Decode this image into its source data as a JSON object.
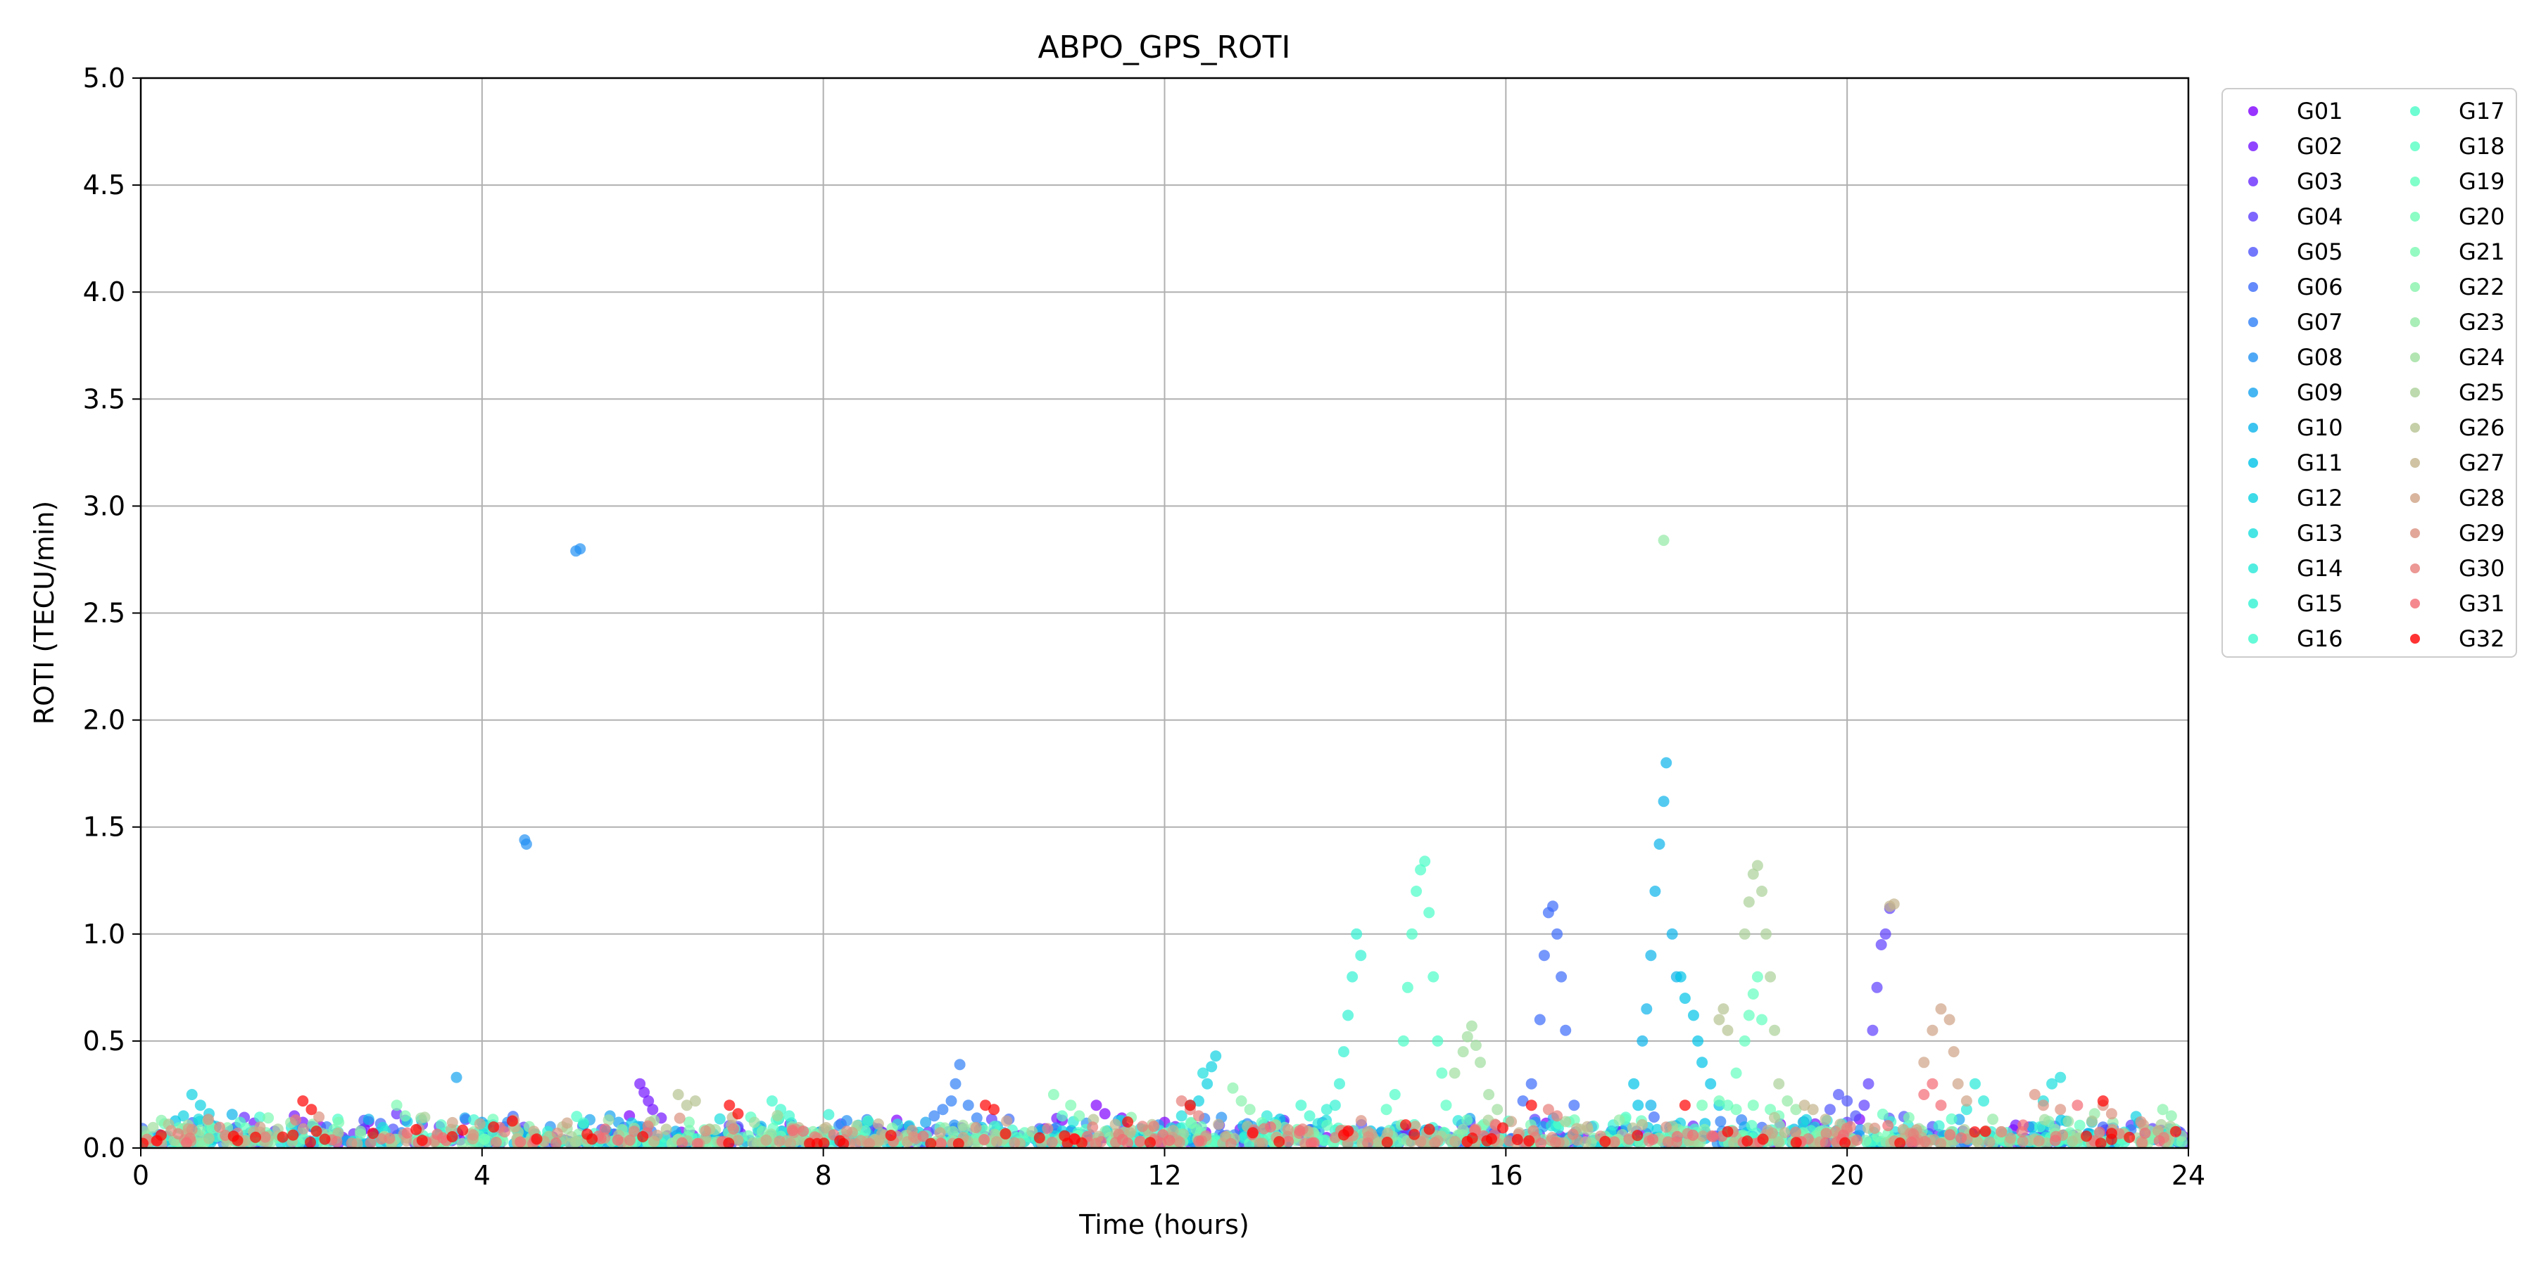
{
  "chart_data": {
    "type": "scatter",
    "title": "ABPO_GPS_ROTI",
    "xlabel": "Time (hours)",
    "ylabel": "ROTI (TECU/min)",
    "xlim": [
      0,
      24
    ],
    "ylim": [
      0,
      5
    ],
    "xticks": [
      0,
      4,
      8,
      12,
      16,
      20,
      24
    ],
    "xtick_labels": [
      "0",
      "4",
      "8",
      "12",
      "16",
      "20",
      "24"
    ],
    "yticks": [
      0,
      0.5,
      1,
      1.5,
      2,
      2.5,
      3,
      3.5,
      4,
      4.5,
      5
    ],
    "ytick_labels": [
      "0.0",
      "0.5",
      "1.0",
      "1.5",
      "2.0",
      "2.5",
      "3.0",
      "3.5",
      "4.0",
      "4.5",
      "5.0"
    ],
    "grid": true,
    "legend_placement": "outside right, two columns",
    "colormap": "rainbow",
    "series": [
      {
        "name": "G01",
        "color": "#8000ff",
        "points": [
          [
            11.2,
            0.2
          ],
          [
            11.3,
            0.16
          ],
          [
            11.5,
            0.14
          ],
          [
            10.8,
            0.13
          ],
          [
            12.0,
            0.12
          ],
          [
            13.2,
            0.1
          ],
          [
            10.6,
            0.09
          ]
        ]
      },
      {
        "name": "G02",
        "color": "#7415ff",
        "points": [
          [
            5.85,
            0.3
          ],
          [
            5.9,
            0.26
          ],
          [
            5.95,
            0.22
          ],
          [
            6.0,
            0.18
          ],
          [
            6.1,
            0.14
          ],
          [
            1.8,
            0.15
          ],
          [
            1.9,
            0.12
          ],
          [
            2.0,
            0.1
          ]
        ]
      },
      {
        "name": "G03",
        "color": "#682bfe",
        "points": [
          [
            3.0,
            0.16
          ],
          [
            3.1,
            0.13
          ],
          [
            3.3,
            0.11
          ],
          [
            3.5,
            0.1
          ],
          [
            9.0,
            0.1
          ]
        ]
      },
      {
        "name": "G04",
        "color": "#5c3ffd",
        "points": [
          [
            20.25,
            0.3
          ],
          [
            20.3,
            0.55
          ],
          [
            20.35,
            0.75
          ],
          [
            20.4,
            0.95
          ],
          [
            20.45,
            1.0
          ],
          [
            20.5,
            1.12
          ],
          [
            20.2,
            0.2
          ],
          [
            20.0,
            0.12
          ]
        ]
      },
      {
        "name": "G05",
        "color": "#5055fb",
        "points": [
          [
            19.9,
            0.25
          ],
          [
            20.0,
            0.22
          ],
          [
            19.8,
            0.18
          ],
          [
            20.1,
            0.15
          ],
          [
            21.0,
            0.1
          ],
          [
            7.0,
            0.1
          ]
        ]
      },
      {
        "name": "G06",
        "color": "#3c6bf9",
        "points": [
          [
            16.3,
            0.3
          ],
          [
            16.4,
            0.6
          ],
          [
            16.45,
            0.9
          ],
          [
            16.5,
            1.1
          ],
          [
            16.55,
            1.13
          ],
          [
            16.6,
            1.0
          ],
          [
            16.65,
            0.8
          ],
          [
            16.7,
            0.55
          ],
          [
            16.2,
            0.22
          ],
          [
            16.8,
            0.2
          ]
        ]
      },
      {
        "name": "G07",
        "color": "#2f7ff6",
        "points": [
          [
            9.6,
            0.39
          ],
          [
            9.55,
            0.3
          ],
          [
            9.5,
            0.22
          ],
          [
            9.4,
            0.18
          ],
          [
            9.3,
            0.15
          ],
          [
            9.7,
            0.2
          ],
          [
            9.8,
            0.14
          ]
        ]
      },
      {
        "name": "G08",
        "color": "#2392f3",
        "points": [
          [
            4.5,
            1.44
          ],
          [
            4.52,
            1.42
          ],
          [
            5.1,
            2.79
          ],
          [
            5.15,
            2.8
          ],
          [
            4.3,
            0.12
          ],
          [
            4.8,
            0.1
          ]
        ]
      },
      {
        "name": "G09",
        "color": "#17a4ef",
        "points": [
          [
            3.7,
            0.33
          ],
          [
            3.8,
            0.14
          ],
          [
            4.0,
            0.12
          ],
          [
            5.5,
            0.15
          ],
          [
            5.6,
            0.12
          ],
          [
            9.2,
            0.12
          ]
        ]
      },
      {
        "name": "G10",
        "color": "#0bb4eb",
        "points": [
          [
            17.7,
            0.9
          ],
          [
            17.75,
            1.2
          ],
          [
            17.8,
            1.42
          ],
          [
            17.85,
            1.62
          ],
          [
            17.88,
            1.8
          ],
          [
            17.95,
            1.0
          ],
          [
            18.0,
            0.8
          ],
          [
            17.65,
            0.65
          ],
          [
            17.6,
            0.5
          ],
          [
            17.7,
            0.2
          ]
        ]
      },
      {
        "name": "G11",
        "color": "#00c3e7",
        "points": [
          [
            18.05,
            0.8
          ],
          [
            18.1,
            0.7
          ],
          [
            18.2,
            0.62
          ],
          [
            18.25,
            0.5
          ],
          [
            18.3,
            0.4
          ],
          [
            18.4,
            0.3
          ],
          [
            18.5,
            0.2
          ],
          [
            17.5,
            0.3
          ],
          [
            17.55,
            0.2
          ]
        ]
      },
      {
        "name": "G12",
        "color": "#0dd1e2",
        "points": [
          [
            0.6,
            0.25
          ],
          [
            0.7,
            0.2
          ],
          [
            0.8,
            0.16
          ],
          [
            0.5,
            0.15
          ],
          [
            12.5,
            0.3
          ],
          [
            12.6,
            0.43
          ],
          [
            12.55,
            0.38
          ],
          [
            12.4,
            0.22
          ]
        ]
      },
      {
        "name": "G13",
        "color": "#19dedd",
        "points": [
          [
            12.45,
            0.35
          ],
          [
            12.3,
            0.2
          ],
          [
            12.2,
            0.15
          ],
          [
            22.4,
            0.3
          ],
          [
            22.5,
            0.33
          ],
          [
            22.3,
            0.22
          ]
        ]
      },
      {
        "name": "G14",
        "color": "#25e9d8",
        "points": [
          [
            13.2,
            0.15
          ],
          [
            13.3,
            0.12
          ],
          [
            21.5,
            0.3
          ],
          [
            21.6,
            0.22
          ],
          [
            21.4,
            0.18
          ]
        ]
      },
      {
        "name": "G15",
        "color": "#32f2d3",
        "points": [
          [
            14.0,
            0.2
          ],
          [
            14.05,
            0.3
          ],
          [
            14.1,
            0.45
          ],
          [
            14.15,
            0.62
          ],
          [
            14.2,
            0.8
          ],
          [
            14.25,
            1.0
          ],
          [
            14.3,
            0.9
          ],
          [
            13.9,
            0.18
          ]
        ]
      },
      {
        "name": "G16",
        "color": "#3ef9ce",
        "points": [
          [
            7.4,
            0.22
          ],
          [
            7.5,
            0.18
          ],
          [
            7.6,
            0.15
          ],
          [
            13.6,
            0.2
          ],
          [
            13.7,
            0.15
          ]
        ]
      },
      {
        "name": "G17",
        "color": "#4afdc8",
        "points": [
          [
            14.7,
            0.25
          ],
          [
            14.8,
            0.5
          ],
          [
            14.85,
            0.75
          ],
          [
            14.9,
            1.0
          ],
          [
            14.95,
            1.2
          ],
          [
            15.0,
            1.3
          ],
          [
            15.05,
            1.34
          ],
          [
            15.1,
            1.1
          ],
          [
            15.15,
            0.8
          ],
          [
            15.2,
            0.5
          ]
        ]
      },
      {
        "name": "G18",
        "color": "#56ffc3",
        "points": [
          [
            15.25,
            0.35
          ],
          [
            15.3,
            0.2
          ],
          [
            14.6,
            0.18
          ],
          [
            10.8,
            0.15
          ]
        ]
      },
      {
        "name": "G19",
        "color": "#62ffbd",
        "points": [
          [
            18.7,
            0.35
          ],
          [
            18.8,
            0.5
          ],
          [
            18.85,
            0.62
          ],
          [
            18.9,
            0.72
          ],
          [
            18.95,
            0.8
          ],
          [
            19.0,
            0.6
          ],
          [
            18.6,
            0.2
          ]
        ]
      },
      {
        "name": "G20",
        "color": "#6efdb7",
        "points": [
          [
            18.3,
            0.2
          ],
          [
            18.5,
            0.22
          ],
          [
            18.7,
            0.18
          ],
          [
            18.9,
            0.2
          ],
          [
            19.1,
            0.18
          ],
          [
            19.2,
            0.15
          ]
        ]
      },
      {
        "name": "G21",
        "color": "#7af9b1",
        "points": [
          [
            3.0,
            0.2
          ],
          [
            3.1,
            0.15
          ],
          [
            10.7,
            0.25
          ],
          [
            10.9,
            0.2
          ],
          [
            11.0,
            0.15
          ]
        ]
      },
      {
        "name": "G22",
        "color": "#87f2ab",
        "points": [
          [
            12.8,
            0.28
          ],
          [
            12.9,
            0.22
          ],
          [
            13.0,
            0.18
          ],
          [
            23.7,
            0.18
          ],
          [
            23.8,
            0.15
          ]
        ]
      },
      {
        "name": "G23",
        "color": "#93e9a5",
        "points": [
          [
            17.85,
            2.84
          ],
          [
            19.3,
            0.22
          ],
          [
            19.4,
            0.18
          ],
          [
            22.9,
            0.16
          ]
        ]
      },
      {
        "name": "G24",
        "color": "#9fde9f",
        "points": [
          [
            15.4,
            0.35
          ],
          [
            15.5,
            0.45
          ],
          [
            15.55,
            0.52
          ],
          [
            15.6,
            0.57
          ],
          [
            15.65,
            0.48
          ],
          [
            15.7,
            0.4
          ],
          [
            15.8,
            0.25
          ],
          [
            15.9,
            0.18
          ]
        ]
      },
      {
        "name": "G25",
        "color": "#abd199",
        "points": [
          [
            18.8,
            1.0
          ],
          [
            18.85,
            1.15
          ],
          [
            18.9,
            1.28
          ],
          [
            18.95,
            1.32
          ],
          [
            19.0,
            1.2
          ],
          [
            19.05,
            1.0
          ],
          [
            19.1,
            0.8
          ],
          [
            19.15,
            0.55
          ],
          [
            19.2,
            0.3
          ]
        ]
      },
      {
        "name": "G26",
        "color": "#b7c392",
        "points": [
          [
            18.5,
            0.6
          ],
          [
            18.55,
            0.65
          ],
          [
            18.6,
            0.55
          ],
          [
            6.3,
            0.25
          ],
          [
            6.4,
            0.2
          ],
          [
            6.5,
            0.22
          ]
        ]
      },
      {
        "name": "G27",
        "color": "#c3b48c",
        "points": [
          [
            20.5,
            1.13
          ],
          [
            20.55,
            1.14
          ],
          [
            19.5,
            0.2
          ],
          [
            19.6,
            0.18
          ]
        ]
      },
      {
        "name": "G28",
        "color": "#cfa386",
        "points": [
          [
            20.9,
            0.4
          ],
          [
            21.0,
            0.55
          ],
          [
            21.1,
            0.65
          ],
          [
            21.2,
            0.6
          ],
          [
            21.25,
            0.45
          ],
          [
            21.3,
            0.3
          ],
          [
            21.4,
            0.22
          ]
        ]
      },
      {
        "name": "G29",
        "color": "#db9180",
        "points": [
          [
            22.2,
            0.25
          ],
          [
            22.3,
            0.2
          ],
          [
            22.5,
            0.18
          ],
          [
            23.0,
            0.2
          ],
          [
            23.1,
            0.16
          ]
        ]
      },
      {
        "name": "G30",
        "color": "#e77e79",
        "points": [
          [
            12.2,
            0.22
          ],
          [
            12.3,
            0.18
          ],
          [
            12.4,
            0.15
          ],
          [
            16.5,
            0.18
          ],
          [
            16.6,
            0.15
          ]
        ]
      },
      {
        "name": "G31",
        "color": "#f36a73",
        "points": [
          [
            20.9,
            0.25
          ],
          [
            21.0,
            0.3
          ],
          [
            21.1,
            0.2
          ],
          [
            22.7,
            0.2
          ]
        ]
      },
      {
        "name": "G32",
        "color": "#ff0000",
        "points": [
          [
            1.9,
            0.22
          ],
          [
            2.0,
            0.18
          ],
          [
            6.9,
            0.2
          ],
          [
            7.0,
            0.16
          ],
          [
            9.9,
            0.2
          ],
          [
            10.0,
            0.18
          ],
          [
            12.3,
            0.2
          ],
          [
            16.3,
            0.2
          ],
          [
            18.1,
            0.2
          ],
          [
            23.0,
            0.22
          ]
        ]
      }
    ]
  }
}
